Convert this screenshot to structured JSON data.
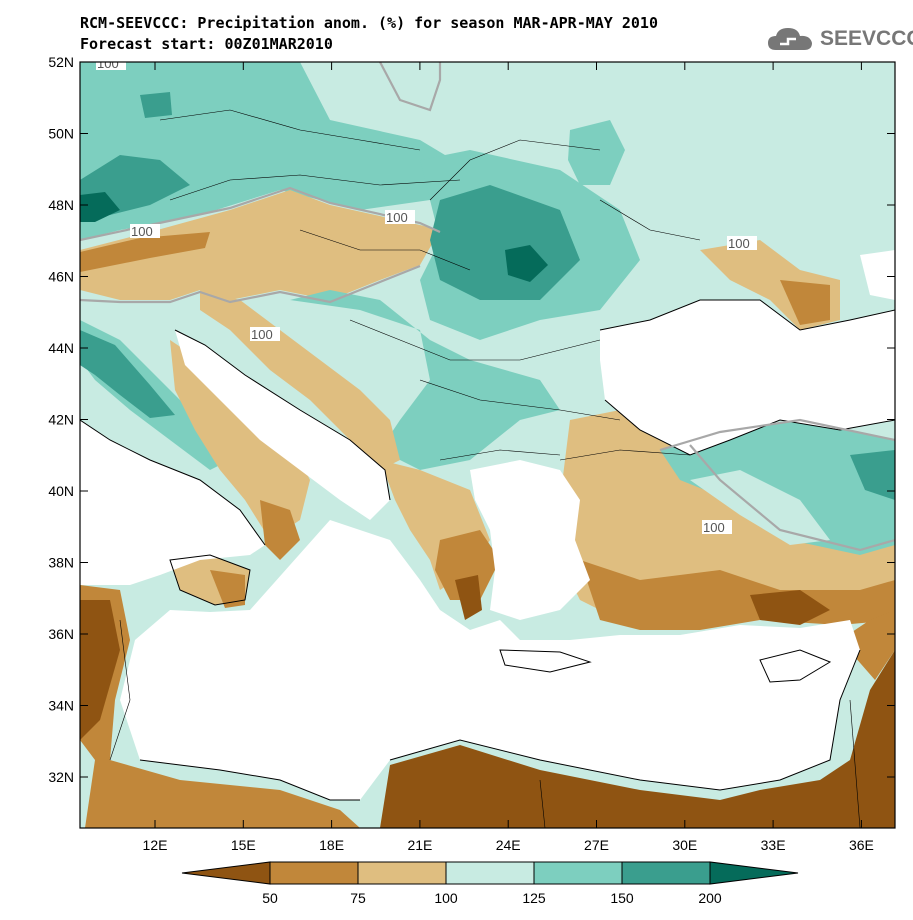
{
  "title_line1": "RCM-SEEVCCC: Precipitation anom. (%) for season MAR-APR-MAY 2010",
  "title_line2": "Forecast start: 00Z01MAR2010",
  "logo_text": "SEEVCCC",
  "colors": {
    "sea": "#ffffff",
    "c_lt50": "#8f5412",
    "c_50_75": "#c1873a",
    "c_75_100": "#dfbe80",
    "c_100_125": "#c8ebe2",
    "c_125_150": "#7dcfbf",
    "c_150_200": "#3a9e8e",
    "c_gt200": "#056b5a",
    "contour100": "#a8a8a8"
  },
  "map": {
    "lat_labels": [
      "52N",
      "50N",
      "48N",
      "46N",
      "44N",
      "42N",
      "40N",
      "38N",
      "36N",
      "34N",
      "32N"
    ],
    "lon_labels": [
      "12E",
      "15E",
      "18E",
      "21E",
      "24E",
      "27E",
      "30E",
      "33E",
      "36E"
    ],
    "contour_labels": [
      "100",
      "100",
      "100",
      "100",
      "100",
      "100",
      "100",
      "100"
    ]
  },
  "legend": {
    "labels": [
      "50",
      "75",
      "100",
      "125",
      "150",
      "200"
    ]
  }
}
